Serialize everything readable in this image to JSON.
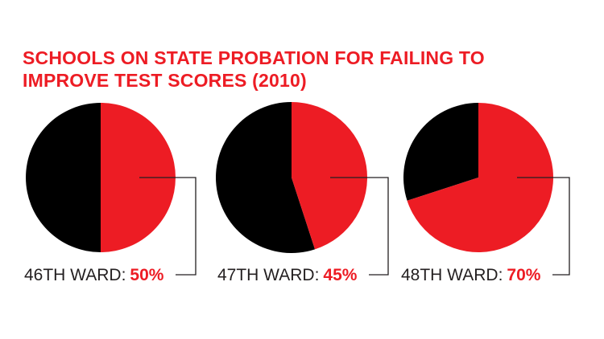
{
  "title_lines": [
    "SCHOOLS ON STATE PROBATION FOR FAILING TO",
    "IMPROVE TEST SCORES (2010)"
  ],
  "colors": {
    "highlight": "#ed1c24",
    "remainder": "#000000",
    "label_text": "#231f20",
    "leader_line": "#231f20"
  },
  "chart_data": [
    {
      "type": "pie",
      "label": "46TH WARD:",
      "value_label": "50%",
      "value": 50
    },
    {
      "type": "pie",
      "label": "47TH WARD:",
      "value_label": "45%",
      "value": 45
    },
    {
      "type": "pie",
      "label": "48TH WARD:",
      "value_label": "70%",
      "value": 70
    }
  ]
}
